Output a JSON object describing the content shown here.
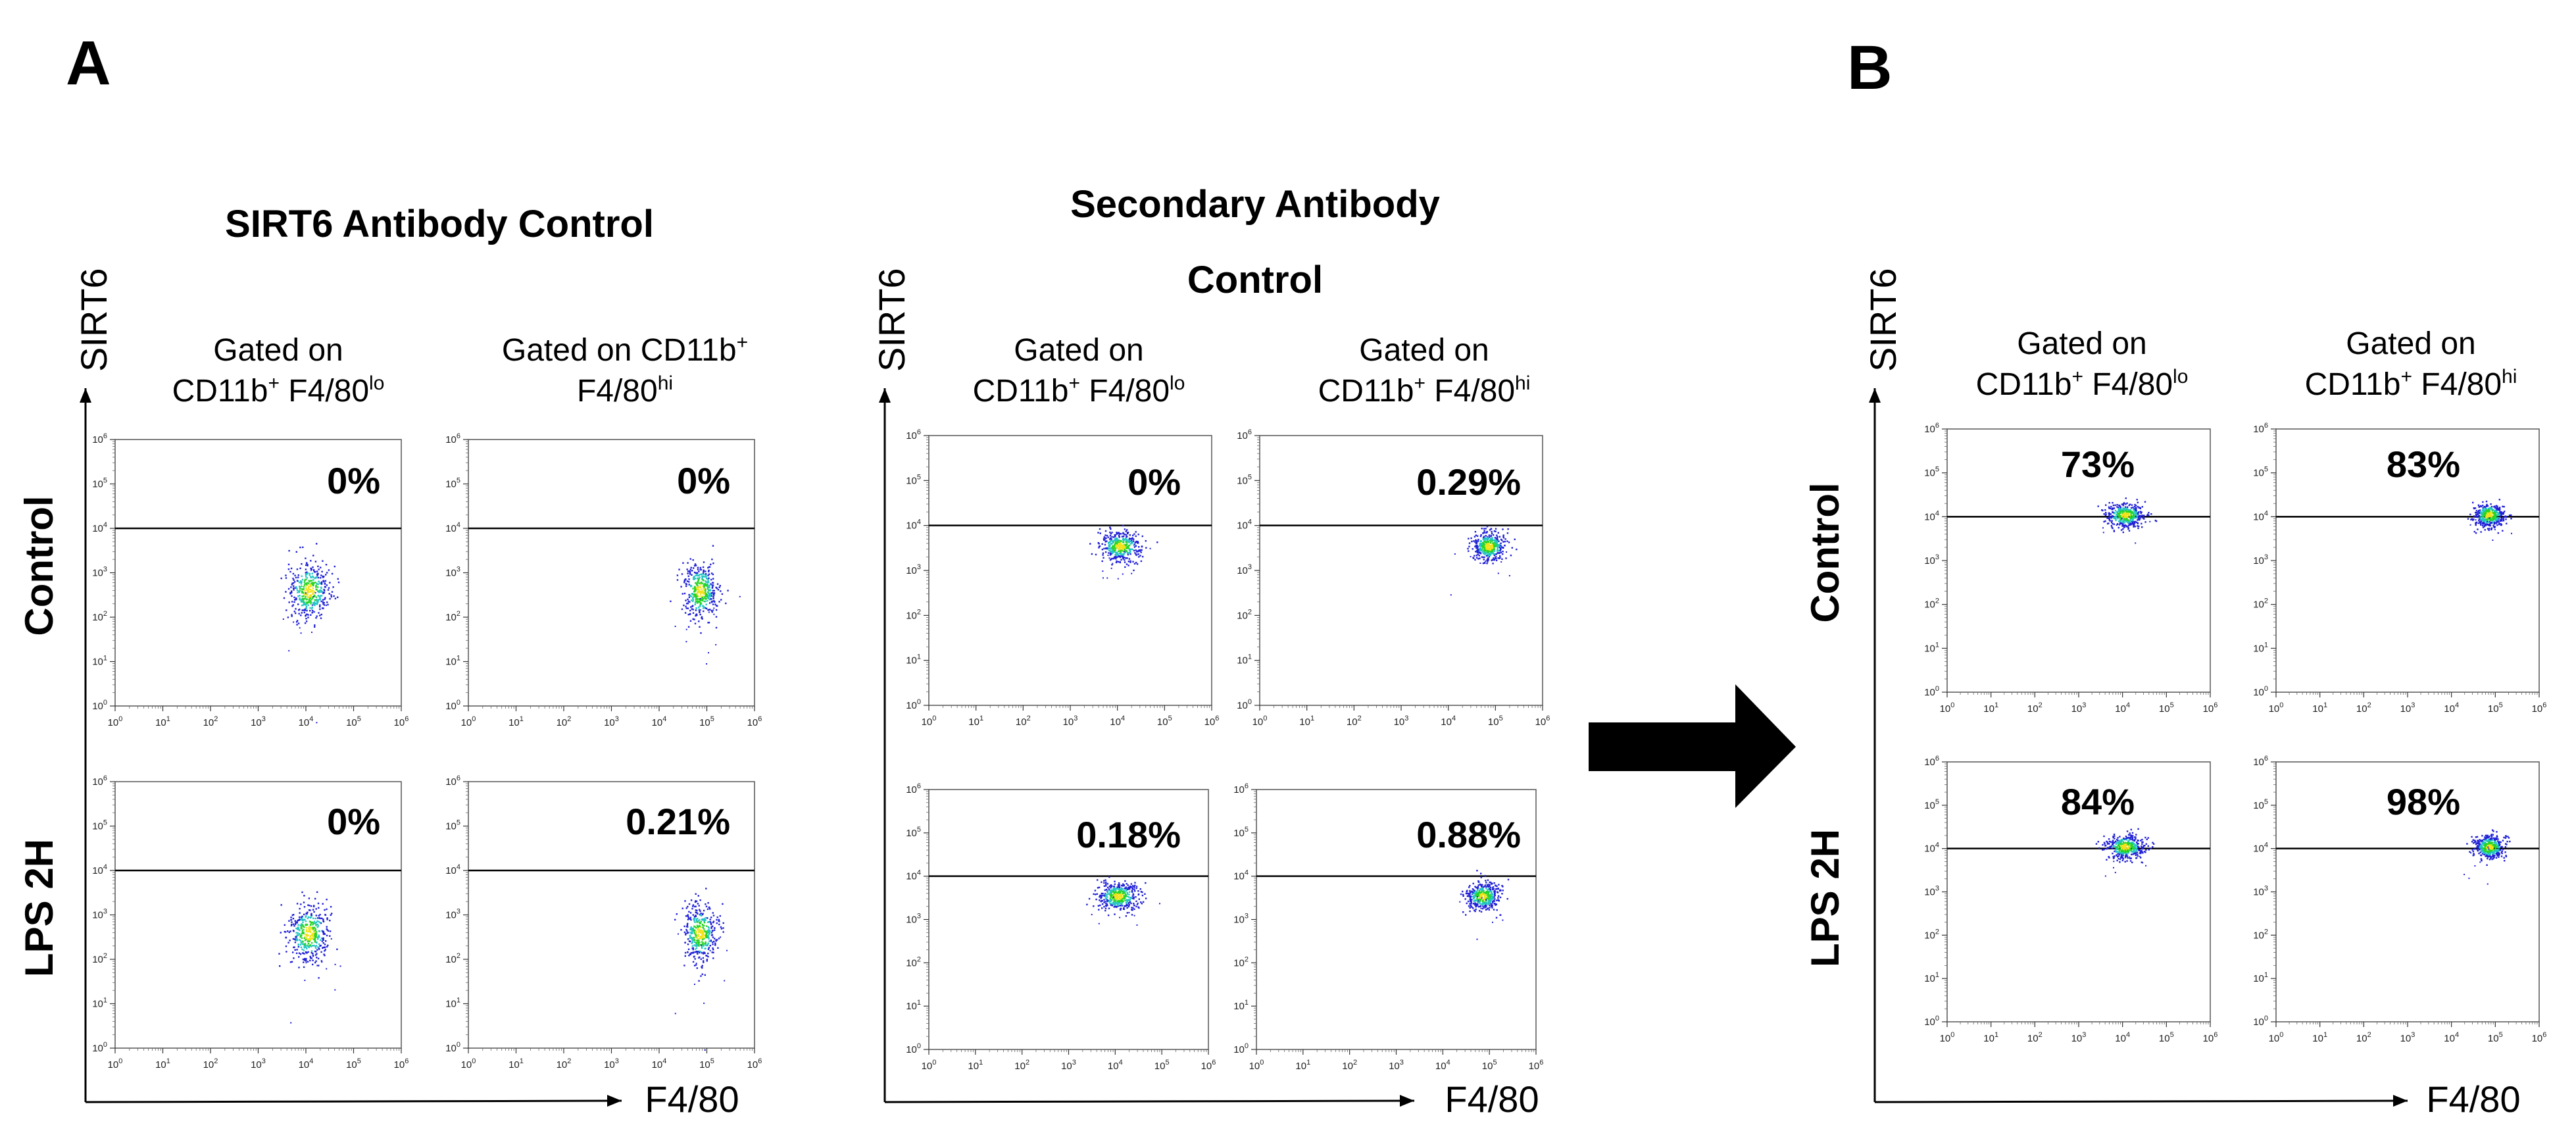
{
  "panels": {
    "a": {
      "letter": "A",
      "sections": [
        {
          "title_lines": [
            "SIRT6 Antibody Control"
          ],
          "y_label": "SIRT6",
          "x_label": "F4/80",
          "columns": [
            {
              "line1": "Gated on",
              "line2_base": "CD11b",
              "line2_sup1": "+",
              "line2_mid": " F4/80",
              "line2_sup2": "lo"
            },
            {
              "line1": "Gated on CD11b",
              "line1_sup": "+",
              "line2_base": "F4/80",
              "line2_sup2": "hi"
            }
          ],
          "rows": [
            "Control",
            "LPS 2H"
          ],
          "plots": [
            {
              "percentage": "0%",
              "population": "lo",
              "positive_fraction": 0.0
            },
            {
              "percentage": "0%",
              "population": "hi",
              "positive_fraction": 0.0
            },
            {
              "percentage": "0%",
              "population": "lo",
              "positive_fraction": 0.0
            },
            {
              "percentage": "0.21%",
              "population": "hi",
              "positive_fraction": 0.0021
            }
          ]
        },
        {
          "title_lines": [
            "Secondary Antibody",
            "Control"
          ],
          "y_label": "SIRT6",
          "x_label": "F4/80",
          "columns": [
            {
              "line1": "Gated on",
              "line2_base": "CD11b",
              "line2_sup1": "+",
              "line2_mid": " F4/80",
              "line2_sup2": "lo"
            },
            {
              "line1": "Gated on",
              "line2_base": "CD11b",
              "line2_sup1": "+",
              "line2_mid": " F4/80",
              "line2_sup2": "hi"
            }
          ],
          "rows": [],
          "plots": [
            {
              "percentage": "0%",
              "population": "lo",
              "positive_fraction": 0.0
            },
            {
              "percentage": "0.29%",
              "population": "hi",
              "positive_fraction": 0.0029
            },
            {
              "percentage": "0.18%",
              "population": "lo",
              "positive_fraction": 0.0018
            },
            {
              "percentage": "0.88%",
              "population": "hi",
              "positive_fraction": 0.0088
            }
          ]
        }
      ]
    },
    "b": {
      "letter": "B",
      "sections": [
        {
          "title_lines": [],
          "y_label": "SIRT6",
          "x_label": "F4/80",
          "columns": [
            {
              "line1": "Gated on",
              "line2_base": "CD11b",
              "line2_sup1": "+",
              "line2_mid": " F4/80",
              "line2_sup2": "lo"
            },
            {
              "line1": "Gated on",
              "line2_base": "CD11b",
              "line2_sup1": "+",
              "line2_mid": " F4/80",
              "line2_sup2": "hi"
            }
          ],
          "rows": [
            "Control",
            "LPS 2H"
          ],
          "plots": [
            {
              "percentage": "73%",
              "population": "lo",
              "positive_fraction": 0.73
            },
            {
              "percentage": "83%",
              "population": "hi",
              "positive_fraction": 0.83
            },
            {
              "percentage": "84%",
              "population": "lo",
              "positive_fraction": 0.84
            },
            {
              "percentage": "98%",
              "population": "hi",
              "positive_fraction": 0.98
            }
          ]
        }
      ]
    }
  },
  "axis_ticks": {
    "x_base": "10",
    "x_exponents": [
      "0",
      "1",
      "2",
      "3",
      "4",
      "5",
      "6"
    ],
    "y_base": "10",
    "y_exponents": [
      "0",
      "1",
      "2",
      "3",
      "4",
      "5",
      "6"
    ]
  },
  "gate_line_value": "10^4",
  "arrow": {
    "direction": "right",
    "color": "#000000"
  },
  "colors": {
    "density_low": "#1f1fd6",
    "density_mid": "#22c4c4",
    "density_high": "#27d427",
    "density_peak": "#f2e21a",
    "axis": "#000000",
    "frame": "#555555"
  }
}
